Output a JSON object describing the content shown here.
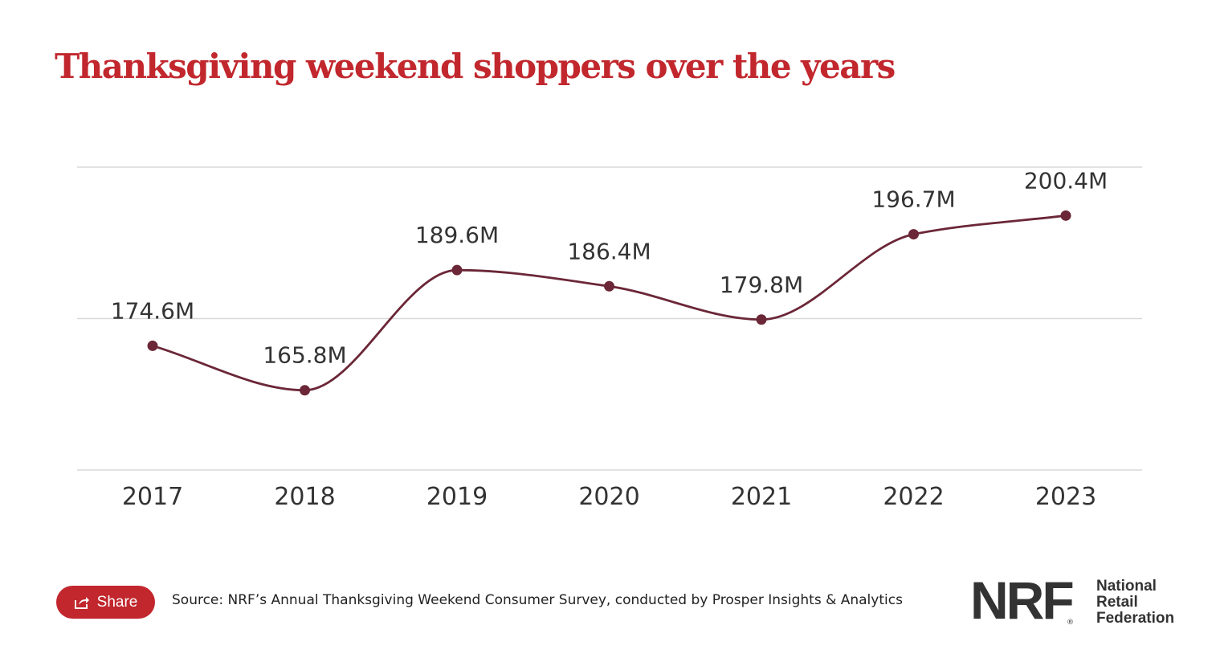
{
  "title": "Thanksgiving weekend shoppers over the years",
  "share_label": "Share",
  "share_icon": "share-icon",
  "source": "Source: NRF’s Annual Thanksgiving Weekend Consumer Survey, conducted by Prosper Insights & Analytics",
  "logo": {
    "letters": "NRF",
    "registered": "®",
    "line1": "National",
    "line2": "Retail",
    "line3": "Federation"
  },
  "colors": {
    "title": "#c1272d",
    "line": "#6b2737",
    "share_button": "#c1272d",
    "grid": "#d9d9d9",
    "text": "#333333"
  },
  "chart_data": {
    "type": "line",
    "title": "Thanksgiving weekend shoppers over the years",
    "categories": [
      "2017",
      "2018",
      "2019",
      "2020",
      "2021",
      "2022",
      "2023"
    ],
    "values": [
      174.6,
      165.8,
      189.6,
      186.4,
      179.8,
      196.7,
      200.4
    ],
    "data_labels": [
      "174.6M",
      "165.8M",
      "189.6M",
      "186.4M",
      "179.8M",
      "196.7M",
      "200.4M"
    ],
    "unit": "M",
    "ylim": [
      150,
      210
    ],
    "grid": true,
    "legend": "none",
    "smooth": true
  }
}
